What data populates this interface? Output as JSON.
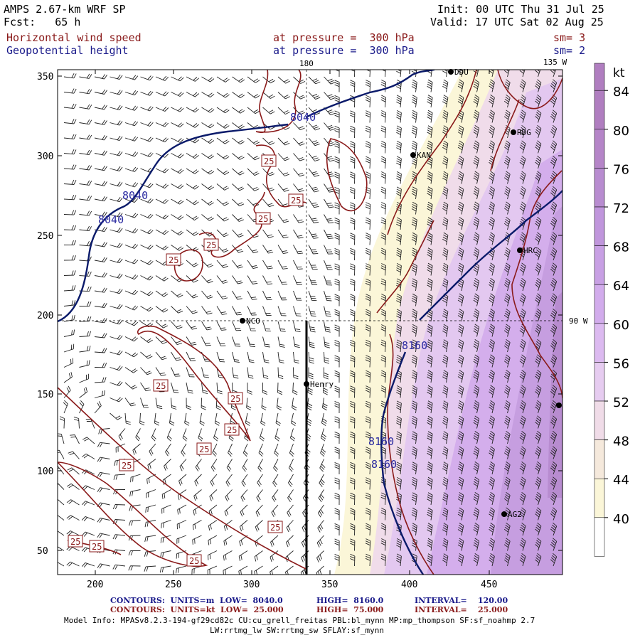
{
  "header": {
    "model": "AMPS 2.67-km WRF SP",
    "forecast": "Fcst:   65 h",
    "init": "Init: 00 UTC Thu 31 Jul 25",
    "valid": "Valid: 17 UTC Sat 02 Aug 25",
    "field1_name": "Horizontal wind speed",
    "field1_level": "at pressure =  300 hPa",
    "field1_smooth": "sm= 3",
    "field2_name": "Geopotential height",
    "field2_level": "at pressure =  300 hPa",
    "field2_smooth": "sm= 2"
  },
  "map": {
    "x_ticks": [
      "200",
      "250",
      "300",
      "350",
      "400",
      "450"
    ],
    "y_ticks": [
      "350",
      "300",
      "250",
      "200",
      "150",
      "100",
      "50"
    ],
    "meridian_180": "180",
    "meridian_135w": "135 W",
    "meridian_90w": "90 W",
    "stations": [
      {
        "name": "DDU"
      },
      {
        "name": "RDG"
      },
      {
        "name": "KAN"
      },
      {
        "name": "HRC"
      },
      {
        "name": "NCO"
      },
      {
        "name": "Henry"
      },
      {
        "name": "AG2"
      }
    ],
    "height_labels": [
      "8040",
      "8040",
      "8040",
      "8160",
      "8160",
      "8160"
    ],
    "speed_label": "25"
  },
  "colorbar": {
    "unit": "kt",
    "labels": [
      "84",
      "80",
      "76",
      "72",
      "68",
      "64",
      "60",
      "56",
      "52",
      "48",
      "44",
      "40"
    ],
    "colors": {
      "40": "#ffffff",
      "44": "#fbf6d8",
      "48": "#f5e9dc",
      "52": "#f0dce8",
      "56": "#e6ccf0",
      "60": "#dcbaf0",
      "64": "#d2acec",
      "68": "#c8a0e4",
      "72": "#c096dc",
      "76": "#b88cd0",
      "80": "#b585c8",
      "84": "#b07ec0"
    }
  },
  "footer": {
    "contours1_a": "CONTOURS:  UNITS=m  LOW=  8040.0",
    "contours1_b": "HIGH=  8160.0",
    "contours1_c": "INTERVAL=    120.00",
    "contours2_a": "CONTOURS:  UNITS=kt  LOW=  25.000",
    "contours2_b": "HIGH=  75.000",
    "contours2_c": "INTERVAL=    25.000",
    "model_info_1": "Model Info: MPASv8.2.3-194-gf29cd82c CU:cu_grell_freitas PBL:bl_mynn MP:mp_thompson SF:sf_noahmp 2.7",
    "model_info_2": "LW:rrtmg_lw SW:rrtmg_sw SFLAY:sf_mynn"
  }
}
